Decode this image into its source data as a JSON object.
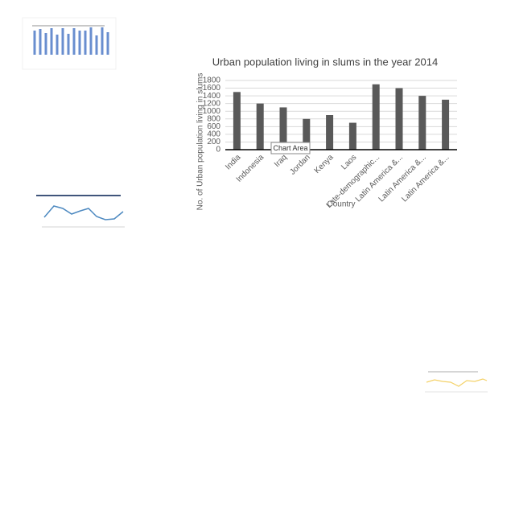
{
  "chart_data": {
    "type": "bar",
    "title": "Urban population living in slums in the year 2014",
    "y_label": "No. of Urban population living in slums",
    "x_label": "Country",
    "categories": [
      "India",
      "Indonesia",
      "Iraq",
      "Jordan",
      "Kenya",
      "Laos",
      "Late-demographic...",
      "Latin America &...",
      "Latin America &...",
      "Latin America &..."
    ],
    "values": [
      1500,
      1200,
      1100,
      800,
      900,
      700,
      1700,
      1600,
      1400,
      1300
    ],
    "color": "#595959",
    "ylim": [
      0,
      1800
    ],
    "yticks": [
      0,
      200,
      400,
      600,
      800,
      1000,
      1200,
      1400,
      1600,
      1800
    ],
    "grid": true
  },
  "tooltip": "Chart Area"
}
